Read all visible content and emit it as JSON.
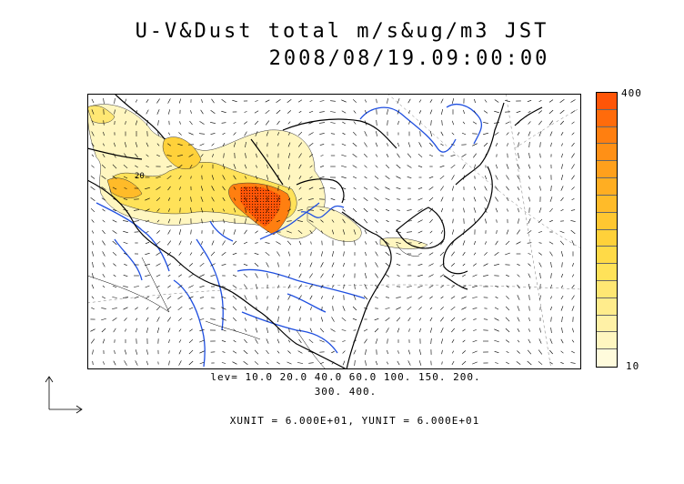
{
  "title": {
    "line1": "U-V&Dust total m/s&ug/m3 JST",
    "line2": "2008/08/19.09:00:00"
  },
  "colorbar": {
    "max_label": "400",
    "min_label": "10",
    "colors": [
      "#fffbdc",
      "#fff6c0",
      "#fff1a6",
      "#ffec8c",
      "#ffe773",
      "#ffe259",
      "#ffda47",
      "#ffd13a",
      "#ffc731",
      "#ffbb29",
      "#ffae22",
      "#ffa01c",
      "#ff9016",
      "#ff7f10",
      "#ff6b0b",
      "#ff5507"
    ]
  },
  "legend": {
    "levels_line1": "lev= 10.0 20.0 40.0 60.0 100. 150. 200.",
    "levels_line2": "300. 400.",
    "units": "XUNIT = 6.000E+01, YUNIT = 6.000E+01",
    "contour_label": "20"
  },
  "colors": {
    "coast": "#000000",
    "river": "#1f4fe0",
    "hot": "#ff5a00",
    "warm": "#ffd23a"
  }
}
